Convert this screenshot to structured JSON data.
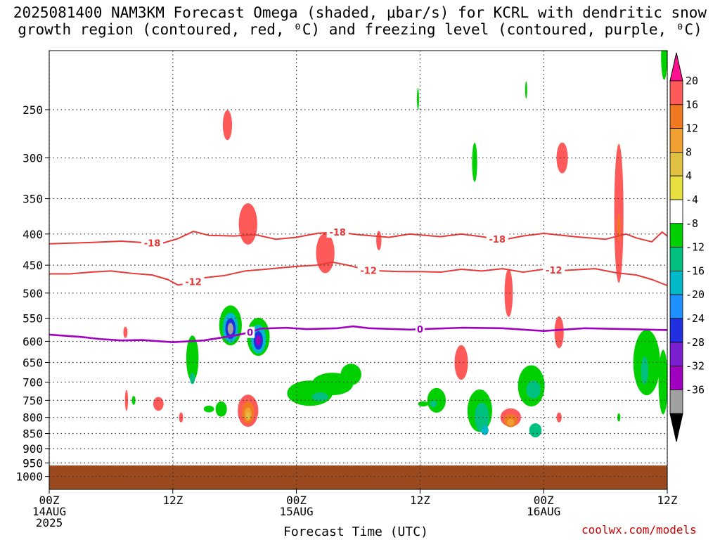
{
  "title_lines": [
    "2025081400 NAM3KM Forecast Omega (shaded, μbar/s) for KCRL with dendritic snow",
    "growth region (contoured, red, ⁰C) and freezing level (contoured, purple, ⁰C)"
  ],
  "credit": "coolwx.com/models",
  "chart_data": {
    "type": "time-height cross-section",
    "xlabel": "Forecast Time (UTC)",
    "x_ticks": [
      {
        "hours": 0,
        "label": "00Z",
        "sub": [
          "14AUG",
          "2025"
        ]
      },
      {
        "hours": 12,
        "label": "12Z",
        "sub": []
      },
      {
        "hours": 24,
        "label": "00Z",
        "sub": [
          "15AUG"
        ]
      },
      {
        "hours": 36,
        "label": "12Z",
        "sub": []
      },
      {
        "hours": 48,
        "label": "00Z",
        "sub": [
          "16AUG"
        ]
      },
      {
        "hours": 60,
        "label": "12Z",
        "sub": []
      }
    ],
    "xlim": [
      0,
      60
    ],
    "y_ticks": [
      250,
      300,
      350,
      400,
      450,
      500,
      550,
      600,
      650,
      700,
      750,
      800,
      850,
      900,
      950,
      1000
    ],
    "ylim_hPa": [
      200,
      1050
    ],
    "y_scale": "log-pressure",
    "grid": "dotted",
    "surface_color": "#9a4a1e",
    "colorbar": {
      "labels": [
        "20",
        "16",
        "12",
        "8",
        "4",
        "-4",
        "-8",
        "-12",
        "-16",
        "-20",
        "-24",
        "-28",
        "-32",
        "-36"
      ],
      "colors": [
        "#ff5a5a",
        "#f07820",
        "#f0a030",
        "#e0c040",
        "#e8e040",
        "#ffffff",
        "#00d000",
        "#00c080",
        "#00b8c8",
        "#1e90ff",
        "#2030e0",
        "#7a1fd0",
        "#a000c0",
        "#a0a0a0"
      ],
      "top_color": "#ff1090",
      "bottom_color": "#000000"
    },
    "contours": [
      {
        "name": "-18",
        "color": "#e83838",
        "labels_at_hours": [
          10,
          28,
          43.5
        ],
        "points": [
          [
            0,
            415
          ],
          [
            4,
            413
          ],
          [
            7,
            411
          ],
          [
            9,
            413
          ],
          [
            11,
            414
          ],
          [
            12.5,
            407
          ],
          [
            14,
            396
          ],
          [
            15.5,
            402
          ],
          [
            18,
            403
          ],
          [
            20,
            401
          ],
          [
            22,
            408
          ],
          [
            24,
            405
          ],
          [
            26,
            399
          ],
          [
            28,
            397
          ],
          [
            30,
            401
          ],
          [
            33,
            405
          ],
          [
            35,
            400
          ],
          [
            38,
            404
          ],
          [
            40,
            400
          ],
          [
            42,
            404
          ],
          [
            44,
            409
          ],
          [
            46,
            403
          ],
          [
            48,
            399
          ],
          [
            51,
            404
          ],
          [
            54,
            408
          ],
          [
            56,
            400
          ],
          [
            57,
            406
          ],
          [
            58.5,
            412
          ],
          [
            59.5,
            397
          ],
          [
            60,
            403
          ]
        ]
      },
      {
        "name": "-12",
        "color": "#e83838",
        "labels_at_hours": [
          14,
          31,
          49
        ],
        "points": [
          [
            0,
            465
          ],
          [
            2,
            465
          ],
          [
            4,
            462
          ],
          [
            6,
            460
          ],
          [
            8,
            464
          ],
          [
            10,
            467
          ],
          [
            11.5,
            475
          ],
          [
            12.5,
            485
          ],
          [
            13.5,
            482
          ],
          [
            15,
            472
          ],
          [
            17,
            468
          ],
          [
            19,
            460
          ],
          [
            21,
            457
          ],
          [
            24,
            452
          ],
          [
            26,
            450
          ],
          [
            27.5,
            445
          ],
          [
            29,
            450
          ],
          [
            31,
            459
          ],
          [
            34,
            461
          ],
          [
            36,
            461
          ],
          [
            38,
            462
          ],
          [
            40,
            457
          ],
          [
            42,
            460
          ],
          [
            44,
            456
          ],
          [
            46,
            462
          ],
          [
            48,
            457
          ],
          [
            50,
            459
          ],
          [
            53,
            456
          ],
          [
            55,
            463
          ],
          [
            57,
            467
          ],
          [
            58.5,
            475
          ],
          [
            60,
            486
          ]
        ]
      },
      {
        "name": "0",
        "color": "#a000c0",
        "labels_at_hours": [
          19.5,
          36
        ],
        "points": [
          [
            0,
            585
          ],
          [
            3,
            590
          ],
          [
            5,
            595
          ],
          [
            7,
            598
          ],
          [
            9,
            597
          ],
          [
            12,
            602
          ],
          [
            15,
            598
          ],
          [
            18,
            587
          ],
          [
            19.5,
            580
          ],
          [
            20.5,
            572
          ],
          [
            23,
            570
          ],
          [
            25,
            573
          ],
          [
            28,
            571
          ],
          [
            29.5,
            567
          ],
          [
            31,
            571
          ],
          [
            35,
            574
          ],
          [
            40,
            570
          ],
          [
            44,
            571
          ],
          [
            48,
            577
          ],
          [
            52,
            571
          ],
          [
            56,
            573
          ],
          [
            60,
            575
          ]
        ]
      }
    ],
    "omega_regions": [
      {
        "t": 17.6,
        "p": 565,
        "dt": 1.1,
        "dp": 85,
        "v": -4
      },
      {
        "t": 17.6,
        "p": 570,
        "dt": 0.75,
        "dp": 65,
        "v": -12
      },
      {
        "t": 17.6,
        "p": 572,
        "dt": 0.5,
        "dp": 45,
        "v": -20
      },
      {
        "t": 17.6,
        "p": 572,
        "dt": 0.28,
        "dp": 25,
        "v": -32
      },
      {
        "t": 20.3,
        "p": 590,
        "dt": 1.1,
        "dp": 85,
        "v": -4
      },
      {
        "t": 20.3,
        "p": 595,
        "dt": 0.75,
        "dp": 65,
        "v": -12
      },
      {
        "t": 20.3,
        "p": 598,
        "dt": 0.45,
        "dp": 42,
        "v": -20
      },
      {
        "t": 20.3,
        "p": 598,
        "dt": 0.25,
        "dp": 22,
        "v": -28
      },
      {
        "t": 19.3,
        "p": 780,
        "dt": 1.0,
        "dp": 95,
        "v": 4
      },
      {
        "t": 19.3,
        "p": 785,
        "dt": 0.6,
        "dp": 65,
        "v": 8
      },
      {
        "t": 19.3,
        "p": 790,
        "dt": 0.35,
        "dp": 40,
        "v": 12
      },
      {
        "t": 19.3,
        "p": 795,
        "dt": 0.18,
        "dp": 22,
        "v": 16
      },
      {
        "t": 16.7,
        "p": 775,
        "dt": 0.55,
        "dp": 45,
        "v": -4
      },
      {
        "t": 15.5,
        "p": 775,
        "dt": 0.5,
        "dp": 20,
        "v": -4
      },
      {
        "t": 13.9,
        "p": 640,
        "dt": 0.6,
        "dp": 110,
        "v": -4
      },
      {
        "t": 13.9,
        "p": 690,
        "dt": 0.25,
        "dp": 30,
        "v": -8
      },
      {
        "t": 12.8,
        "p": 800,
        "dt": 0.2,
        "dp": 30,
        "v": 4
      },
      {
        "t": 10.6,
        "p": 760,
        "dt": 0.5,
        "dp": 40,
        "v": 4
      },
      {
        "t": 7.4,
        "p": 580,
        "dt": 0.2,
        "dp": 25,
        "v": 4
      },
      {
        "t": 7.5,
        "p": 750,
        "dt": 0.15,
        "dp": 60,
        "v": 4
      },
      {
        "t": 8.2,
        "p": 750,
        "dt": 0.18,
        "dp": 25,
        "v": -4
      },
      {
        "t": 17.3,
        "p": 265,
        "dt": 0.45,
        "dp": 30,
        "v": 4
      },
      {
        "t": 19.3,
        "p": 385,
        "dt": 0.9,
        "dp": 60,
        "v": 4
      },
      {
        "t": 26.8,
        "p": 430,
        "dt": 0.9,
        "dp": 65,
        "v": 4
      },
      {
        "t": 25.3,
        "p": 730,
        "dt": 2.2,
        "dp": 70,
        "v": -4
      },
      {
        "t": 27.5,
        "p": 705,
        "dt": 2.0,
        "dp": 60,
        "v": -4
      },
      {
        "t": 29.3,
        "p": 680,
        "dt": 1.0,
        "dp": 55,
        "v": -4
      },
      {
        "t": 26.3,
        "p": 740,
        "dt": 0.8,
        "dp": 25,
        "v": -8
      },
      {
        "t": 32.0,
        "p": 410,
        "dt": 0.25,
        "dp": 30,
        "v": 4
      },
      {
        "t": 37.6,
        "p": 750,
        "dt": 0.9,
        "dp": 70,
        "v": -4
      },
      {
        "t": 37.3,
        "p": 760,
        "dt": 0.35,
        "dp": 20,
        "v": -8
      },
      {
        "t": 36.3,
        "p": 760,
        "dt": 0.5,
        "dp": 15,
        "v": -4
      },
      {
        "t": 35.8,
        "p": 240,
        "dt": 0.1,
        "dp": 20,
        "v": -4
      },
      {
        "t": 41.3,
        "p": 305,
        "dt": 0.25,
        "dp": 45,
        "v": -4
      },
      {
        "t": 40.0,
        "p": 650,
        "dt": 0.65,
        "dp": 85,
        "v": 4
      },
      {
        "t": 41.8,
        "p": 780,
        "dt": 1.2,
        "dp": 125,
        "v": -4
      },
      {
        "t": 42.0,
        "p": 800,
        "dt": 0.7,
        "dp": 90,
        "v": -8
      },
      {
        "t": 42.3,
        "p": 840,
        "dt": 0.35,
        "dp": 30,
        "v": -12
      },
      {
        "t": 44.6,
        "p": 500,
        "dt": 0.4,
        "dp": 90,
        "v": 4
      },
      {
        "t": 44.8,
        "p": 800,
        "dt": 1.0,
        "dp": 55,
        "v": 4
      },
      {
        "t": 44.8,
        "p": 810,
        "dt": 0.65,
        "dp": 40,
        "v": 8
      },
      {
        "t": 44.8,
        "p": 815,
        "dt": 0.35,
        "dp": 22,
        "v": 12
      },
      {
        "t": 46.8,
        "p": 710,
        "dt": 1.3,
        "dp": 110,
        "v": -4
      },
      {
        "t": 47.0,
        "p": 720,
        "dt": 0.7,
        "dp": 50,
        "v": -8
      },
      {
        "t": 47.2,
        "p": 840,
        "dt": 0.6,
        "dp": 45,
        "v": -8
      },
      {
        "t": 49.5,
        "p": 580,
        "dt": 0.45,
        "dp": 70,
        "v": 4
      },
      {
        "t": 49.5,
        "p": 800,
        "dt": 0.25,
        "dp": 30,
        "v": 4
      },
      {
        "t": 49.8,
        "p": 300,
        "dt": 0.55,
        "dp": 35,
        "v": 4
      },
      {
        "t": 46.3,
        "p": 232,
        "dt": 0.1,
        "dp": 15,
        "v": -4
      },
      {
        "t": 55.3,
        "p": 370,
        "dt": 0.45,
        "dp": 190,
        "v": 4
      },
      {
        "t": 55.3,
        "p": 390,
        "dt": 0.15,
        "dp": 40,
        "v": 8
      },
      {
        "t": 58.0,
        "p": 650,
        "dt": 1.3,
        "dp": 160,
        "v": -4
      },
      {
        "t": 57.8,
        "p": 670,
        "dt": 0.35,
        "dp": 70,
        "v": -8
      },
      {
        "t": 59.6,
        "p": 700,
        "dt": 0.45,
        "dp": 170,
        "v": -4
      },
      {
        "t": 59.7,
        "p": 205,
        "dt": 0.3,
        "dp": 35,
        "v": -4
      },
      {
        "t": 55.3,
        "p": 800,
        "dt": 0.15,
        "dp": 25,
        "v": -4
      }
    ]
  }
}
